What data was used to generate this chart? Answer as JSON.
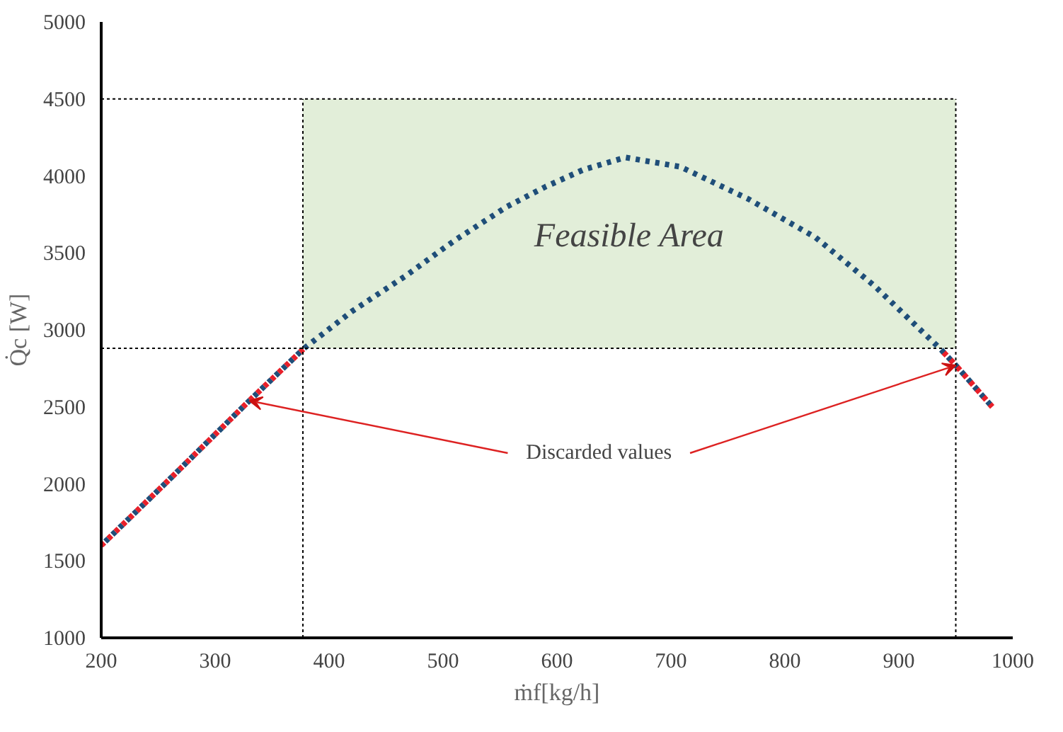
{
  "chart_data": {
    "type": "line",
    "xlabel": "ṁf[kg/h]",
    "ylabel": "Q̇c [W]",
    "xlim": [
      200,
      1000
    ],
    "ylim": [
      1000,
      5000
    ],
    "xticks": [
      200,
      300,
      400,
      500,
      600,
      700,
      800,
      900,
      1000
    ],
    "yticks": [
      1000,
      1500,
      2000,
      2500,
      3000,
      3500,
      4000,
      4500,
      5000
    ],
    "grid": false,
    "marker": "none",
    "line_style": "dotted",
    "series": [
      {
        "color": "#1f4e79",
        "x": [
          200,
          260,
          330,
          378,
          420,
          467,
          510,
          556,
          590,
          623,
          660,
          708,
          768,
          827,
          878,
          936,
          950,
          982
        ],
        "values": [
          1600,
          2030,
          2540,
          2880,
          3120,
          3350,
          3580,
          3800,
          3930,
          4040,
          4120,
          4060,
          3850,
          3600,
          3290,
          2880,
          2770,
          2500
        ]
      },
      {
        "color": "#e8202a",
        "x": [
          200,
          260,
          330,
          378
        ],
        "values": [
          1600,
          2030,
          2540,
          2880
        ]
      },
      {
        "color": "#e8202a",
        "x": [
          936,
          950,
          982
        ],
        "values": [
          2880,
          2770,
          2500
        ]
      }
    ],
    "bands": [
      {
        "axis": "x",
        "from": 377,
        "to": 950,
        "label": "Feasible Area",
        "color": "#e2eed9"
      }
    ],
    "ref_lines": [
      {
        "axis": "x",
        "value": 377,
        "line_style": "dashed",
        "color": "#000000"
      },
      {
        "axis": "x",
        "value": 950,
        "line_style": "dashed",
        "color": "#000000"
      },
      {
        "axis": "y",
        "value": 2880,
        "line_style": "dashed",
        "color": "#000000"
      },
      {
        "axis": "y",
        "value": 4500,
        "line_style": "dashed",
        "color": "#000000"
      }
    ],
    "annotations": [
      {
        "text": "Discarded values",
        "x": 330,
        "y": 2540
      }
    ]
  }
}
